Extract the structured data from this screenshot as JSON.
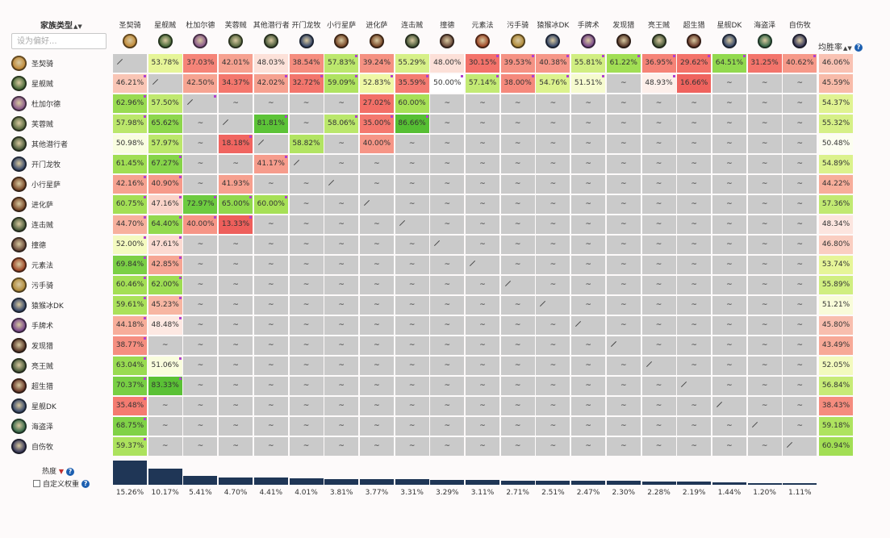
{
  "header": {
    "corner_title": "家族类型",
    "sort_arrows": "▲▼",
    "filter_placeholder": "设为偏好...",
    "winrate_title": "均胜率",
    "winrate_sort": "▲▼",
    "help_glyph": "?"
  },
  "columns": [
    {
      "name": "圣契骑",
      "color": "#c08a3a",
      "icon": "paladin-icon"
    },
    {
      "name": "星舰贼",
      "color": "#4a6a3a",
      "icon": "rogue-icon"
    },
    {
      "name": "杜加尔德",
      "color": "#8a5a8a",
      "icon": "priest-icon"
    },
    {
      "name": "芙蓉贼",
      "color": "#5a6a40",
      "icon": "rogue-icon"
    },
    {
      "name": "其他潜行者",
      "color": "#4a5a3a",
      "icon": "rogue-icon"
    },
    {
      "name": "开门龙牧",
      "color": "#3a4a6a",
      "icon": "priest-icon"
    },
    {
      "name": "小行星萨",
      "color": "#7a4a2a",
      "icon": "shaman-icon"
    },
    {
      "name": "进化萨",
      "color": "#7a4a2a",
      "icon": "shaman-icon"
    },
    {
      "name": "连击贼",
      "color": "#4a5a3a",
      "icon": "rogue-icon"
    },
    {
      "name": "撞德",
      "color": "#6a4a3a",
      "icon": "druid-icon"
    },
    {
      "name": "元素法",
      "color": "#a04a2a",
      "icon": "mage-icon"
    },
    {
      "name": "污手骑",
      "color": "#b08a3a",
      "icon": "paladin-icon"
    },
    {
      "name": "猿猴冰DK",
      "color": "#3a4a6a",
      "icon": "deathknight-icon"
    },
    {
      "name": "手牌术",
      "color": "#7a4a8a",
      "icon": "warlock-icon"
    },
    {
      "name": "发现猎",
      "color": "#5a3a2a",
      "icon": "hunter-icon"
    },
    {
      "name": "亮王贼",
      "color": "#4a5a3a",
      "icon": "rogue-icon"
    },
    {
      "name": "超生猎",
      "color": "#6a3a2a",
      "icon": "hunter-icon"
    },
    {
      "name": "星舰DK",
      "color": "#3a4a6a",
      "icon": "deathknight-icon"
    },
    {
      "name": "海盗泽",
      "color": "#3a6a4a",
      "icon": "shaman-icon"
    },
    {
      "name": "自伤牧",
      "color": "#3a3a5a",
      "icon": "priest-icon"
    }
  ],
  "rows": [
    {
      "name": "圣契骑",
      "color": "#c08a3a",
      "icon": "paladin-icon",
      "winrate": "46.06%",
      "cells": [
        "/",
        "53.78%",
        "37.03%",
        "42.01%",
        "48.03%",
        "38.54%",
        "57.83%",
        "39.24%",
        "55.29%",
        "48.00%",
        "30.15%",
        "39.53%",
        "40.38%",
        "55.81%",
        "61.22%",
        "36.95%",
        "29.62%",
        "64.51%",
        "31.25%",
        "40.62%"
      ]
    },
    {
      "name": "星舰贼",
      "color": "#4a6a3a",
      "icon": "rogue-icon",
      "winrate": "45.59%",
      "cells": [
        "46.21%",
        "/",
        "42.50%",
        "34.37%",
        "42.02%",
        "32.72%",
        "59.09%",
        "52.83%",
        "35.59%",
        "50.00%",
        "57.14%",
        "38.00%",
        "54.76%",
        "51.51%",
        "~",
        "48.93%",
        "16.66%",
        "~",
        "~",
        "~"
      ]
    },
    {
      "name": "杜加尔德",
      "color": "#8a5a8a",
      "icon": "priest-icon",
      "winrate": "54.37%",
      "cells": [
        "62.96%",
        "57.50%",
        "/",
        "~",
        "~",
        "~",
        "~",
        "27.02%",
        "60.00%",
        "~",
        "~",
        "~",
        "~",
        "~",
        "~",
        "~",
        "~",
        "~",
        "~",
        "~"
      ]
    },
    {
      "name": "芙蓉贼",
      "color": "#5a6a40",
      "icon": "rogue-icon",
      "winrate": "55.32%",
      "cells": [
        "57.98%",
        "65.62%",
        "~",
        "/",
        "81.81%",
        "~",
        "58.06%",
        "35.00%",
        "86.66%",
        "~",
        "~",
        "~",
        "~",
        "~",
        "~",
        "~",
        "~",
        "~",
        "~",
        "~"
      ]
    },
    {
      "name": "其他潜行者",
      "color": "#4a5a3a",
      "icon": "rogue-icon",
      "winrate": "50.48%",
      "cells": [
        "50.98%",
        "57.97%",
        "~",
        "18.18%",
        "/",
        "58.82%",
        "~",
        "40.00%",
        "~",
        "~",
        "~",
        "~",
        "~",
        "~",
        "~",
        "~",
        "~",
        "~",
        "~",
        "~"
      ]
    },
    {
      "name": "开门龙牧",
      "color": "#3a4a6a",
      "icon": "priest-icon",
      "winrate": "54.89%",
      "cells": [
        "61.45%",
        "67.27%",
        "~",
        "~",
        "41.17%",
        "/",
        "~",
        "~",
        "~",
        "~",
        "~",
        "~",
        "~",
        "~",
        "~",
        "~",
        "~",
        "~",
        "~",
        "~"
      ]
    },
    {
      "name": "小行星萨",
      "color": "#7a4a2a",
      "icon": "shaman-icon",
      "winrate": "44.22%",
      "cells": [
        "42.16%",
        "40.90%",
        "~",
        "41.93%",
        "~",
        "~",
        "/",
        "~",
        "~",
        "~",
        "~",
        "~",
        "~",
        "~",
        "~",
        "~",
        "~",
        "~",
        "~",
        "~"
      ]
    },
    {
      "name": "进化萨",
      "color": "#7a4a2a",
      "icon": "shaman-icon",
      "winrate": "57.36%",
      "cells": [
        "60.75%",
        "47.16%",
        "72.97%",
        "65.00%",
        "60.00%",
        "~",
        "~",
        "/",
        "~",
        "~",
        "~",
        "~",
        "~",
        "~",
        "~",
        "~",
        "~",
        "~",
        "~",
        "~"
      ]
    },
    {
      "name": "连击贼",
      "color": "#4a5a3a",
      "icon": "rogue-icon",
      "winrate": "48.34%",
      "cells": [
        "44.70%",
        "64.40%",
        "40.00%",
        "13.33%",
        "~",
        "~",
        "~",
        "~",
        "/",
        "~",
        "~",
        "~",
        "~",
        "~",
        "~",
        "~",
        "~",
        "~",
        "~",
        "~"
      ]
    },
    {
      "name": "撞德",
      "color": "#6a4a3a",
      "icon": "druid-icon",
      "winrate": "46.80%",
      "cells": [
        "52.00%",
        "47.61%",
        "~",
        "~",
        "~",
        "~",
        "~",
        "~",
        "~",
        "/",
        "~",
        "~",
        "~",
        "~",
        "~",
        "~",
        "~",
        "~",
        "~",
        "~"
      ]
    },
    {
      "name": "元素法",
      "color": "#a04a2a",
      "icon": "mage-icon",
      "winrate": "53.74%",
      "cells": [
        "69.84%",
        "42.85%",
        "~",
        "~",
        "~",
        "~",
        "~",
        "~",
        "~",
        "~",
        "/",
        "~",
        "~",
        "~",
        "~",
        "~",
        "~",
        "~",
        "~",
        "~"
      ]
    },
    {
      "name": "污手骑",
      "color": "#b08a3a",
      "icon": "paladin-icon",
      "winrate": "55.89%",
      "cells": [
        "60.46%",
        "62.00%",
        "~",
        "~",
        "~",
        "~",
        "~",
        "~",
        "~",
        "~",
        "~",
        "/",
        "~",
        "~",
        "~",
        "~",
        "~",
        "~",
        "~",
        "~"
      ]
    },
    {
      "name": "猿猴冰DK",
      "color": "#3a4a6a",
      "icon": "deathknight-icon",
      "winrate": "51.21%",
      "cells": [
        "59.61%",
        "45.23%",
        "~",
        "~",
        "~",
        "~",
        "~",
        "~",
        "~",
        "~",
        "~",
        "~",
        "/",
        "~",
        "~",
        "~",
        "~",
        "~",
        "~",
        "~"
      ]
    },
    {
      "name": "手牌术",
      "color": "#7a4a8a",
      "icon": "warlock-icon",
      "winrate": "45.80%",
      "cells": [
        "44.18%",
        "48.48%",
        "~",
        "~",
        "~",
        "~",
        "~",
        "~",
        "~",
        "~",
        "~",
        "~",
        "~",
        "/",
        "~",
        "~",
        "~",
        "~",
        "~",
        "~"
      ]
    },
    {
      "name": "发现猎",
      "color": "#5a3a2a",
      "icon": "hunter-icon",
      "winrate": "43.49%",
      "cells": [
        "38.77%",
        "~",
        "~",
        "~",
        "~",
        "~",
        "~",
        "~",
        "~",
        "~",
        "~",
        "~",
        "~",
        "~",
        "/",
        "~",
        "~",
        "~",
        "~",
        "~"
      ]
    },
    {
      "name": "亮王贼",
      "color": "#4a5a3a",
      "icon": "rogue-icon",
      "winrate": "52.05%",
      "cells": [
        "63.04%",
        "51.06%",
        "~",
        "~",
        "~",
        "~",
        "~",
        "~",
        "~",
        "~",
        "~",
        "~",
        "~",
        "~",
        "~",
        "/",
        "~",
        "~",
        "~",
        "~"
      ]
    },
    {
      "name": "超生猎",
      "color": "#6a3a2a",
      "icon": "hunter-icon",
      "winrate": "56.84%",
      "cells": [
        "70.37%",
        "83.33%",
        "~",
        "~",
        "~",
        "~",
        "~",
        "~",
        "~",
        "~",
        "~",
        "~",
        "~",
        "~",
        "~",
        "~",
        "/",
        "~",
        "~",
        "~"
      ]
    },
    {
      "name": "星舰DK",
      "color": "#3a4a6a",
      "icon": "deathknight-icon",
      "winrate": "38.43%",
      "cells": [
        "35.48%",
        "~",
        "~",
        "~",
        "~",
        "~",
        "~",
        "~",
        "~",
        "~",
        "~",
        "~",
        "~",
        "~",
        "~",
        "~",
        "~",
        "/",
        "~",
        "~"
      ]
    },
    {
      "name": "海盗泽",
      "color": "#3a6a4a",
      "icon": "shaman-icon",
      "winrate": "59.18%",
      "cells": [
        "68.75%",
        "~",
        "~",
        "~",
        "~",
        "~",
        "~",
        "~",
        "~",
        "~",
        "~",
        "~",
        "~",
        "~",
        "~",
        "~",
        "~",
        "~",
        "/",
        "~"
      ]
    },
    {
      "name": "自伤牧",
      "color": "#3a3a5a",
      "icon": "priest-icon",
      "winrate": "60.94%",
      "cells": [
        "59.37%",
        "~",
        "~",
        "~",
        "~",
        "~",
        "~",
        "~",
        "~",
        "~",
        "~",
        "~",
        "~",
        "~",
        "~",
        "~",
        "~",
        "~",
        "~",
        "/"
      ]
    }
  ],
  "marks": [
    [
      0,
      6
    ],
    [
      0,
      10
    ],
    [
      0,
      11
    ],
    [
      0,
      12
    ],
    [
      0,
      13
    ],
    [
      0,
      14
    ],
    [
      0,
      15
    ],
    [
      0,
      16
    ],
    [
      0,
      17
    ],
    [
      0,
      19
    ],
    [
      1,
      0
    ],
    [
      1,
      4
    ],
    [
      1,
      5
    ],
    [
      1,
      6
    ],
    [
      1,
      7
    ],
    [
      1,
      8
    ],
    [
      1,
      9
    ],
    [
      1,
      10
    ],
    [
      1,
      11
    ],
    [
      1,
      12
    ],
    [
      1,
      13
    ],
    [
      1,
      15
    ],
    [
      2,
      0
    ],
    [
      2,
      2
    ],
    [
      3,
      0
    ],
    [
      3,
      4
    ],
    [
      3,
      6
    ],
    [
      3,
      7
    ],
    [
      3,
      8
    ],
    [
      4,
      3
    ],
    [
      5,
      1
    ],
    [
      5,
      4
    ],
    [
      6,
      0
    ],
    [
      6,
      1
    ],
    [
      7,
      0
    ],
    [
      7,
      1
    ],
    [
      7,
      2
    ],
    [
      7,
      3
    ],
    [
      7,
      4
    ],
    [
      8,
      0
    ],
    [
      8,
      1
    ],
    [
      8,
      2
    ],
    [
      8,
      3
    ],
    [
      9,
      0
    ],
    [
      9,
      1
    ],
    [
      10,
      0
    ],
    [
      10,
      1
    ],
    [
      11,
      0
    ],
    [
      11,
      1
    ],
    [
      12,
      0
    ],
    [
      12,
      1
    ],
    [
      13,
      0
    ],
    [
      13,
      1
    ],
    [
      14,
      0
    ],
    [
      15,
      0
    ],
    [
      15,
      1
    ],
    [
      16,
      0
    ],
    [
      16,
      1
    ],
    [
      17,
      0
    ],
    [
      18,
      0
    ],
    [
      19,
      0
    ]
  ],
  "footer": {
    "popularity_label": "热度",
    "popularity_sort": "▼",
    "custom_weight_label": "自定义权重",
    "popularity": [
      "15.26%",
      "10.17%",
      "5.41%",
      "4.70%",
      "4.41%",
      "4.01%",
      "3.81%",
      "3.77%",
      "3.31%",
      "3.29%",
      "3.11%",
      "2.71%",
      "2.51%",
      "2.47%",
      "2.30%",
      "2.28%",
      "2.19%",
      "1.44%",
      "1.20%",
      "1.11%"
    ]
  },
  "colors": {
    "empty_cell": "#cacaca",
    "popularity_bar": "#1f3656",
    "marker": "#b040d0",
    "help": "#1c5fb0"
  }
}
